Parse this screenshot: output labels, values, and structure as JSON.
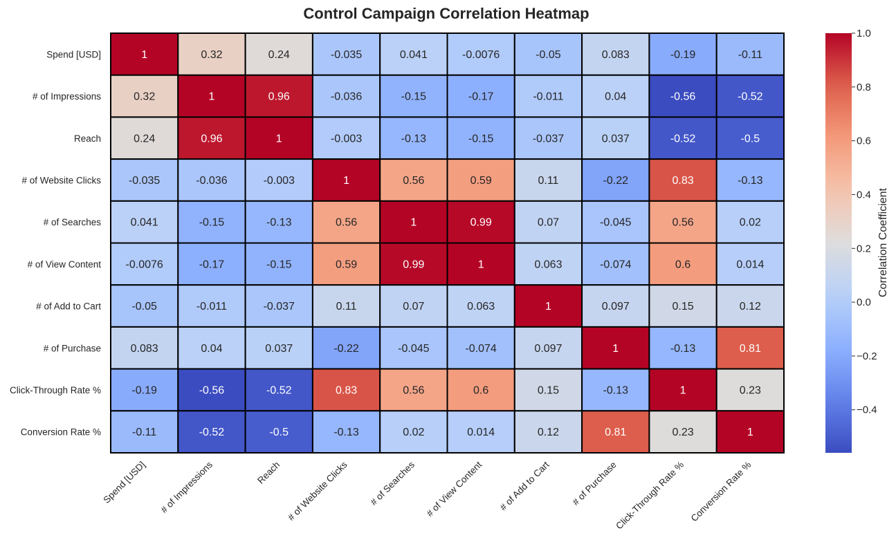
{
  "chart_data": {
    "type": "heatmap",
    "title": "Control Campaign Correlation Heatmap",
    "rows": [
      "Spend [USD]",
      "# of Impressions",
      "Reach",
      "# of Website Clicks",
      "# of Searches",
      "# of View Content",
      "# of Add to Cart",
      "# of Purchase",
      "Click-Through Rate %",
      "Conversion Rate %"
    ],
    "columns": [
      "Spend [USD]",
      "# of Impressions",
      "Reach",
      "# of Website Clicks",
      "# of Searches",
      "# of View Content",
      "# of Add to Cart",
      "# of Purchase",
      "Click-Through Rate %",
      "Conversion Rate %"
    ],
    "values": [
      [
        1,
        0.32,
        0.24,
        -0.035,
        0.041,
        -0.0076,
        -0.05,
        0.083,
        -0.19,
        -0.11
      ],
      [
        0.32,
        1,
        0.96,
        -0.036,
        -0.15,
        -0.17,
        -0.011,
        0.04,
        -0.56,
        -0.52
      ],
      [
        0.24,
        0.96,
        1,
        -0.003,
        -0.13,
        -0.15,
        -0.037,
        0.037,
        -0.52,
        -0.5
      ],
      [
        -0.035,
        -0.036,
        -0.003,
        1,
        0.56,
        0.59,
        0.11,
        -0.22,
        0.83,
        -0.13
      ],
      [
        0.041,
        -0.15,
        -0.13,
        0.56,
        1,
        0.99,
        0.07,
        -0.045,
        0.56,
        0.02
      ],
      [
        -0.0076,
        -0.17,
        -0.15,
        0.59,
        0.99,
        1,
        0.063,
        -0.074,
        0.6,
        0.014
      ],
      [
        -0.05,
        -0.011,
        -0.037,
        0.11,
        0.07,
        0.063,
        1,
        0.097,
        0.15,
        0.12
      ],
      [
        0.083,
        0.04,
        0.037,
        -0.22,
        -0.045,
        -0.074,
        0.097,
        1,
        -0.13,
        0.81
      ],
      [
        -0.19,
        -0.56,
        -0.52,
        0.83,
        0.56,
        0.6,
        0.15,
        -0.13,
        1,
        0.23
      ],
      [
        -0.11,
        -0.52,
        -0.5,
        -0.13,
        0.02,
        0.014,
        0.12,
        0.81,
        0.23,
        1
      ]
    ],
    "colormap": "coolwarm",
    "color_range": [
      -0.56,
      1.0
    ],
    "colorbar": {
      "label": "Correlation Coefficient",
      "ticks": [
        1.0,
        0.8,
        0.6,
        0.4,
        0.2,
        0.0,
        -0.2,
        -0.4
      ],
      "tick_labels": [
        "1.0",
        "0.8",
        "0.6",
        "0.4",
        "0.2",
        "0.0",
        "−0.2",
        "−0.4"
      ]
    },
    "annotations": true,
    "cell_border_color": "#000000"
  }
}
